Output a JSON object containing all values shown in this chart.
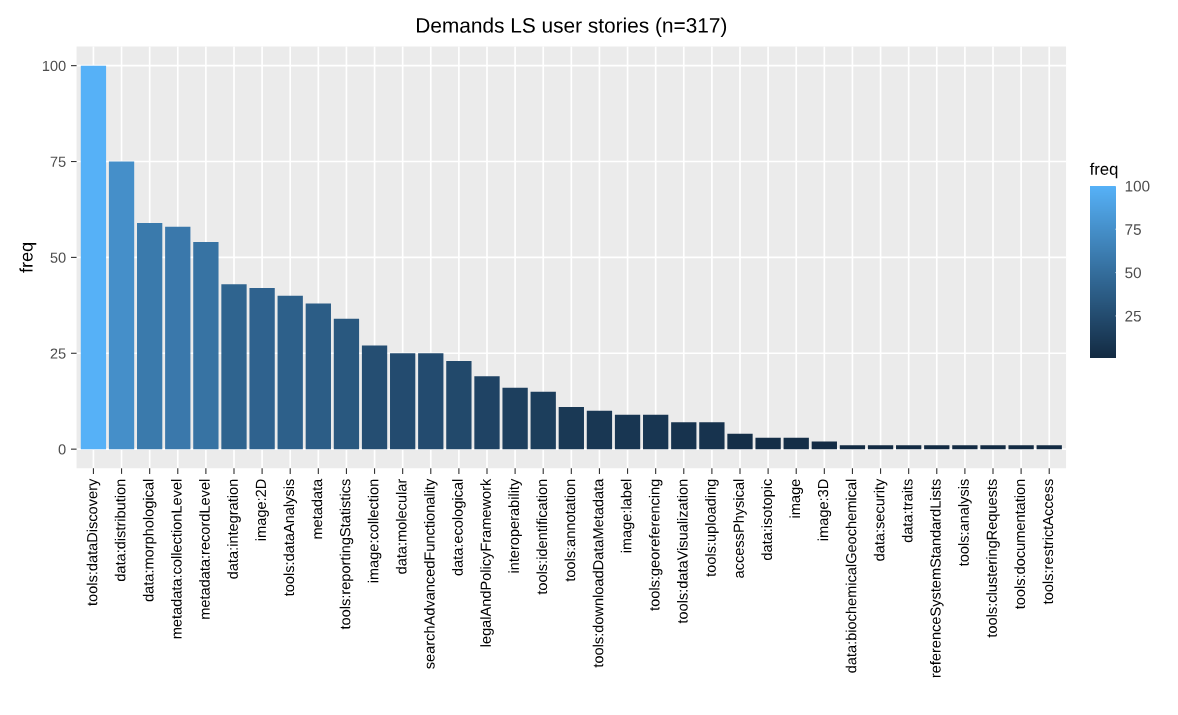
{
  "chart_data": {
    "type": "bar",
    "title": "Demands LS user stories (n=317)",
    "ylabel": "freq",
    "clabel": "freq",
    "categories": [
      "tools:dataDiscovery",
      "data:distribution",
      "data:morphological",
      "metadata:collectionLevel",
      "metadata:recordLevel",
      "data:integration",
      "image:2D",
      "tools:dataAnalysis",
      "metadata",
      "tools:reportingStatistics",
      "image:collection",
      "data:molecular",
      "searchAdvancedFunctionality",
      "data:ecological",
      "legalAndPolicyFramework",
      "interoperability",
      "tools:identification",
      "tools:annotation",
      "tools:downloadDataMetadata",
      "image:label",
      "tools:georeferencing",
      "tools:dataVisualization",
      "tools:uploading",
      "accessPhysical",
      "data:isotopic",
      "image",
      "image:3D",
      "data:biochemicalGeochemical",
      "data:security",
      "data:traits",
      "referenceSystemStandardLists",
      "tools:analysis",
      "tools:clusteringRequests",
      "tools:documentation",
      "tools:restrictAccess"
    ],
    "values": [
      100,
      75,
      59,
      58,
      54,
      43,
      42,
      40,
      38,
      34,
      27,
      25,
      25,
      23,
      19,
      16,
      15,
      11,
      10,
      9,
      9,
      7,
      7,
      4,
      3,
      3,
      2,
      1,
      1,
      1,
      1,
      1,
      1,
      1,
      1
    ],
    "colors": [
      "#56b1f7",
      "#458fc9",
      "#3a7aac",
      "#3a78ab",
      "#3773a3",
      "#2f648f",
      "#2f628e",
      "#2d608a",
      "#2c5d86",
      "#29587f",
      "#254e72",
      "#234b6f",
      "#234b6f",
      "#22496b",
      "#1f4364",
      "#1d3f5e",
      "#1c3e5c",
      "#1a3955",
      "#193753",
      "#183652",
      "#183652",
      "#17334e",
      "#17334e",
      "#152f48",
      "#142e47",
      "#142e47",
      "#142c45",
      "#132b43",
      "#132b43",
      "#132b43",
      "#132b43",
      "#132b43",
      "#132b43",
      "#132b43",
      "#132b43"
    ],
    "ylim": [
      -5,
      105
    ],
    "yticks": [
      0,
      25,
      50,
      75,
      100
    ],
    "clim": [
      1,
      100
    ],
    "cticks": [
      25,
      50,
      75,
      100
    ],
    "grid": true
  }
}
